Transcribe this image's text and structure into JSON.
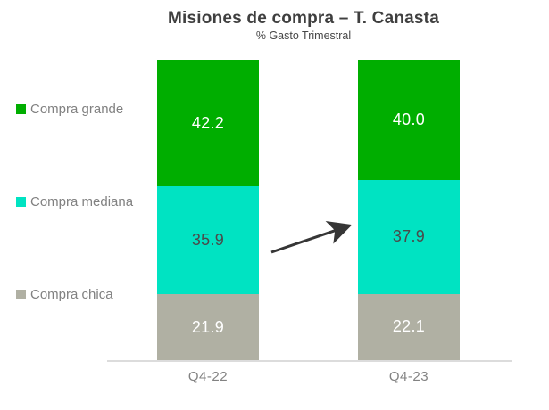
{
  "header": {
    "title": "Misiones de compra – T. Canasta",
    "subtitle": "% Gasto Trimestral"
  },
  "chart_data": {
    "type": "bar",
    "variant": "stacked-100",
    "title": "Misiones de compra – T. Canasta",
    "subtitle": "% Gasto Trimestral",
    "unit": "% of quarterly spend",
    "categories": [
      "Q4-22",
      "Q4-23"
    ],
    "series": [
      {
        "name": "Compra grande",
        "color": "#00ae00",
        "label_color": "#ffffff",
        "values": [
          42.2,
          40.0
        ],
        "labels": [
          "42.2",
          "40.0"
        ]
      },
      {
        "name": "Compra mediana",
        "color": "#00e3c2",
        "label_color": "#4a4a4a",
        "values": [
          35.9,
          37.9
        ],
        "labels": [
          "35.9",
          "37.9"
        ]
      },
      {
        "name": "Compra chica",
        "color": "#b0b0a3",
        "label_color": "#ffffff",
        "values": [
          21.9,
          22.1
        ],
        "labels": [
          "21.9",
          "22.1"
        ]
      }
    ],
    "legend_position": "left",
    "grid": false,
    "axis_line_color": "#dcdcdc",
    "ylim": [
      0,
      100
    ],
    "annotations": [
      {
        "type": "arrow",
        "description": "upward trend arrow between Q4-22 and Q4-23 mediana segments",
        "color": "#363636"
      }
    ]
  }
}
